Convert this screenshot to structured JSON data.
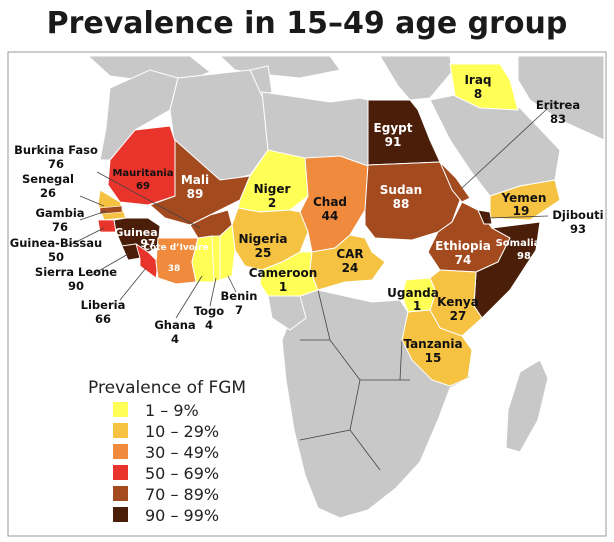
{
  "title": "Prevalence in 15–49 age group",
  "colors": {
    "ocean": "#ffffff",
    "land_other": "#c8c8c8",
    "border": "#ffffff",
    "frame": "#9a9a9a",
    "bin1": "#ffff55",
    "bin2": "#f5c242",
    "bin3": "#f08a3c",
    "bin4": "#e8342a",
    "bin5": "#a34a1e",
    "bin6": "#4a1e08"
  },
  "legend": {
    "title": "Prevalence of FGM",
    "items": [
      {
        "label": "1 – 9%",
        "color": "#ffff55"
      },
      {
        "label": "10 – 29%",
        "color": "#f5c242"
      },
      {
        "label": "30 – 49%",
        "color": "#f08a3c"
      },
      {
        "label": "50 – 69%",
        "color": "#e8342a"
      },
      {
        "label": "70 – 89%",
        "color": "#a34a1e"
      },
      {
        "label": "90 – 99%",
        "color": "#4a1e08"
      }
    ]
  },
  "countries": [
    {
      "name": "Egypt",
      "value": "91"
    },
    {
      "name": "Iraq",
      "value": "8"
    },
    {
      "name": "Mali",
      "value": "89"
    },
    {
      "name": "Mauritania",
      "value": "69"
    },
    {
      "name": "Niger",
      "value": "2"
    },
    {
      "name": "Chad",
      "value": "44"
    },
    {
      "name": "Sudan",
      "value": "88"
    },
    {
      "name": "Nigeria",
      "value": "25"
    },
    {
      "name": "Cameroon",
      "value": "1"
    },
    {
      "name": "CAR",
      "value": "24"
    },
    {
      "name": "Ethiopia",
      "value": "74"
    },
    {
      "name": "Somalia",
      "value": "98"
    },
    {
      "name": "Yemen",
      "value": "19"
    },
    {
      "name": "Uganda",
      "value": "1"
    },
    {
      "name": "Kenya",
      "value": "27"
    },
    {
      "name": "Tanzania",
      "value": "15"
    },
    {
      "name": "Guinea",
      "value": "97"
    },
    {
      "name": "Côte d’Ivoire",
      "value": "38"
    }
  ],
  "callouts": [
    {
      "name": "Burkina Faso",
      "value": "76"
    },
    {
      "name": "Senegal",
      "value": "26"
    },
    {
      "name": "Gambia",
      "value": "76"
    },
    {
      "name": "Guinea-Bissau",
      "value": "50"
    },
    {
      "name": "Sierra Leone",
      "value": "90"
    },
    {
      "name": "Liberia",
      "value": "66"
    },
    {
      "name": "Ghana",
      "value": "4"
    },
    {
      "name": "Togo",
      "value": "4"
    },
    {
      "name": "Benin",
      "value": "7"
    },
    {
      "name": "Eritrea",
      "value": "83"
    },
    {
      "name": "Djibouti",
      "value": "93"
    }
  ]
}
